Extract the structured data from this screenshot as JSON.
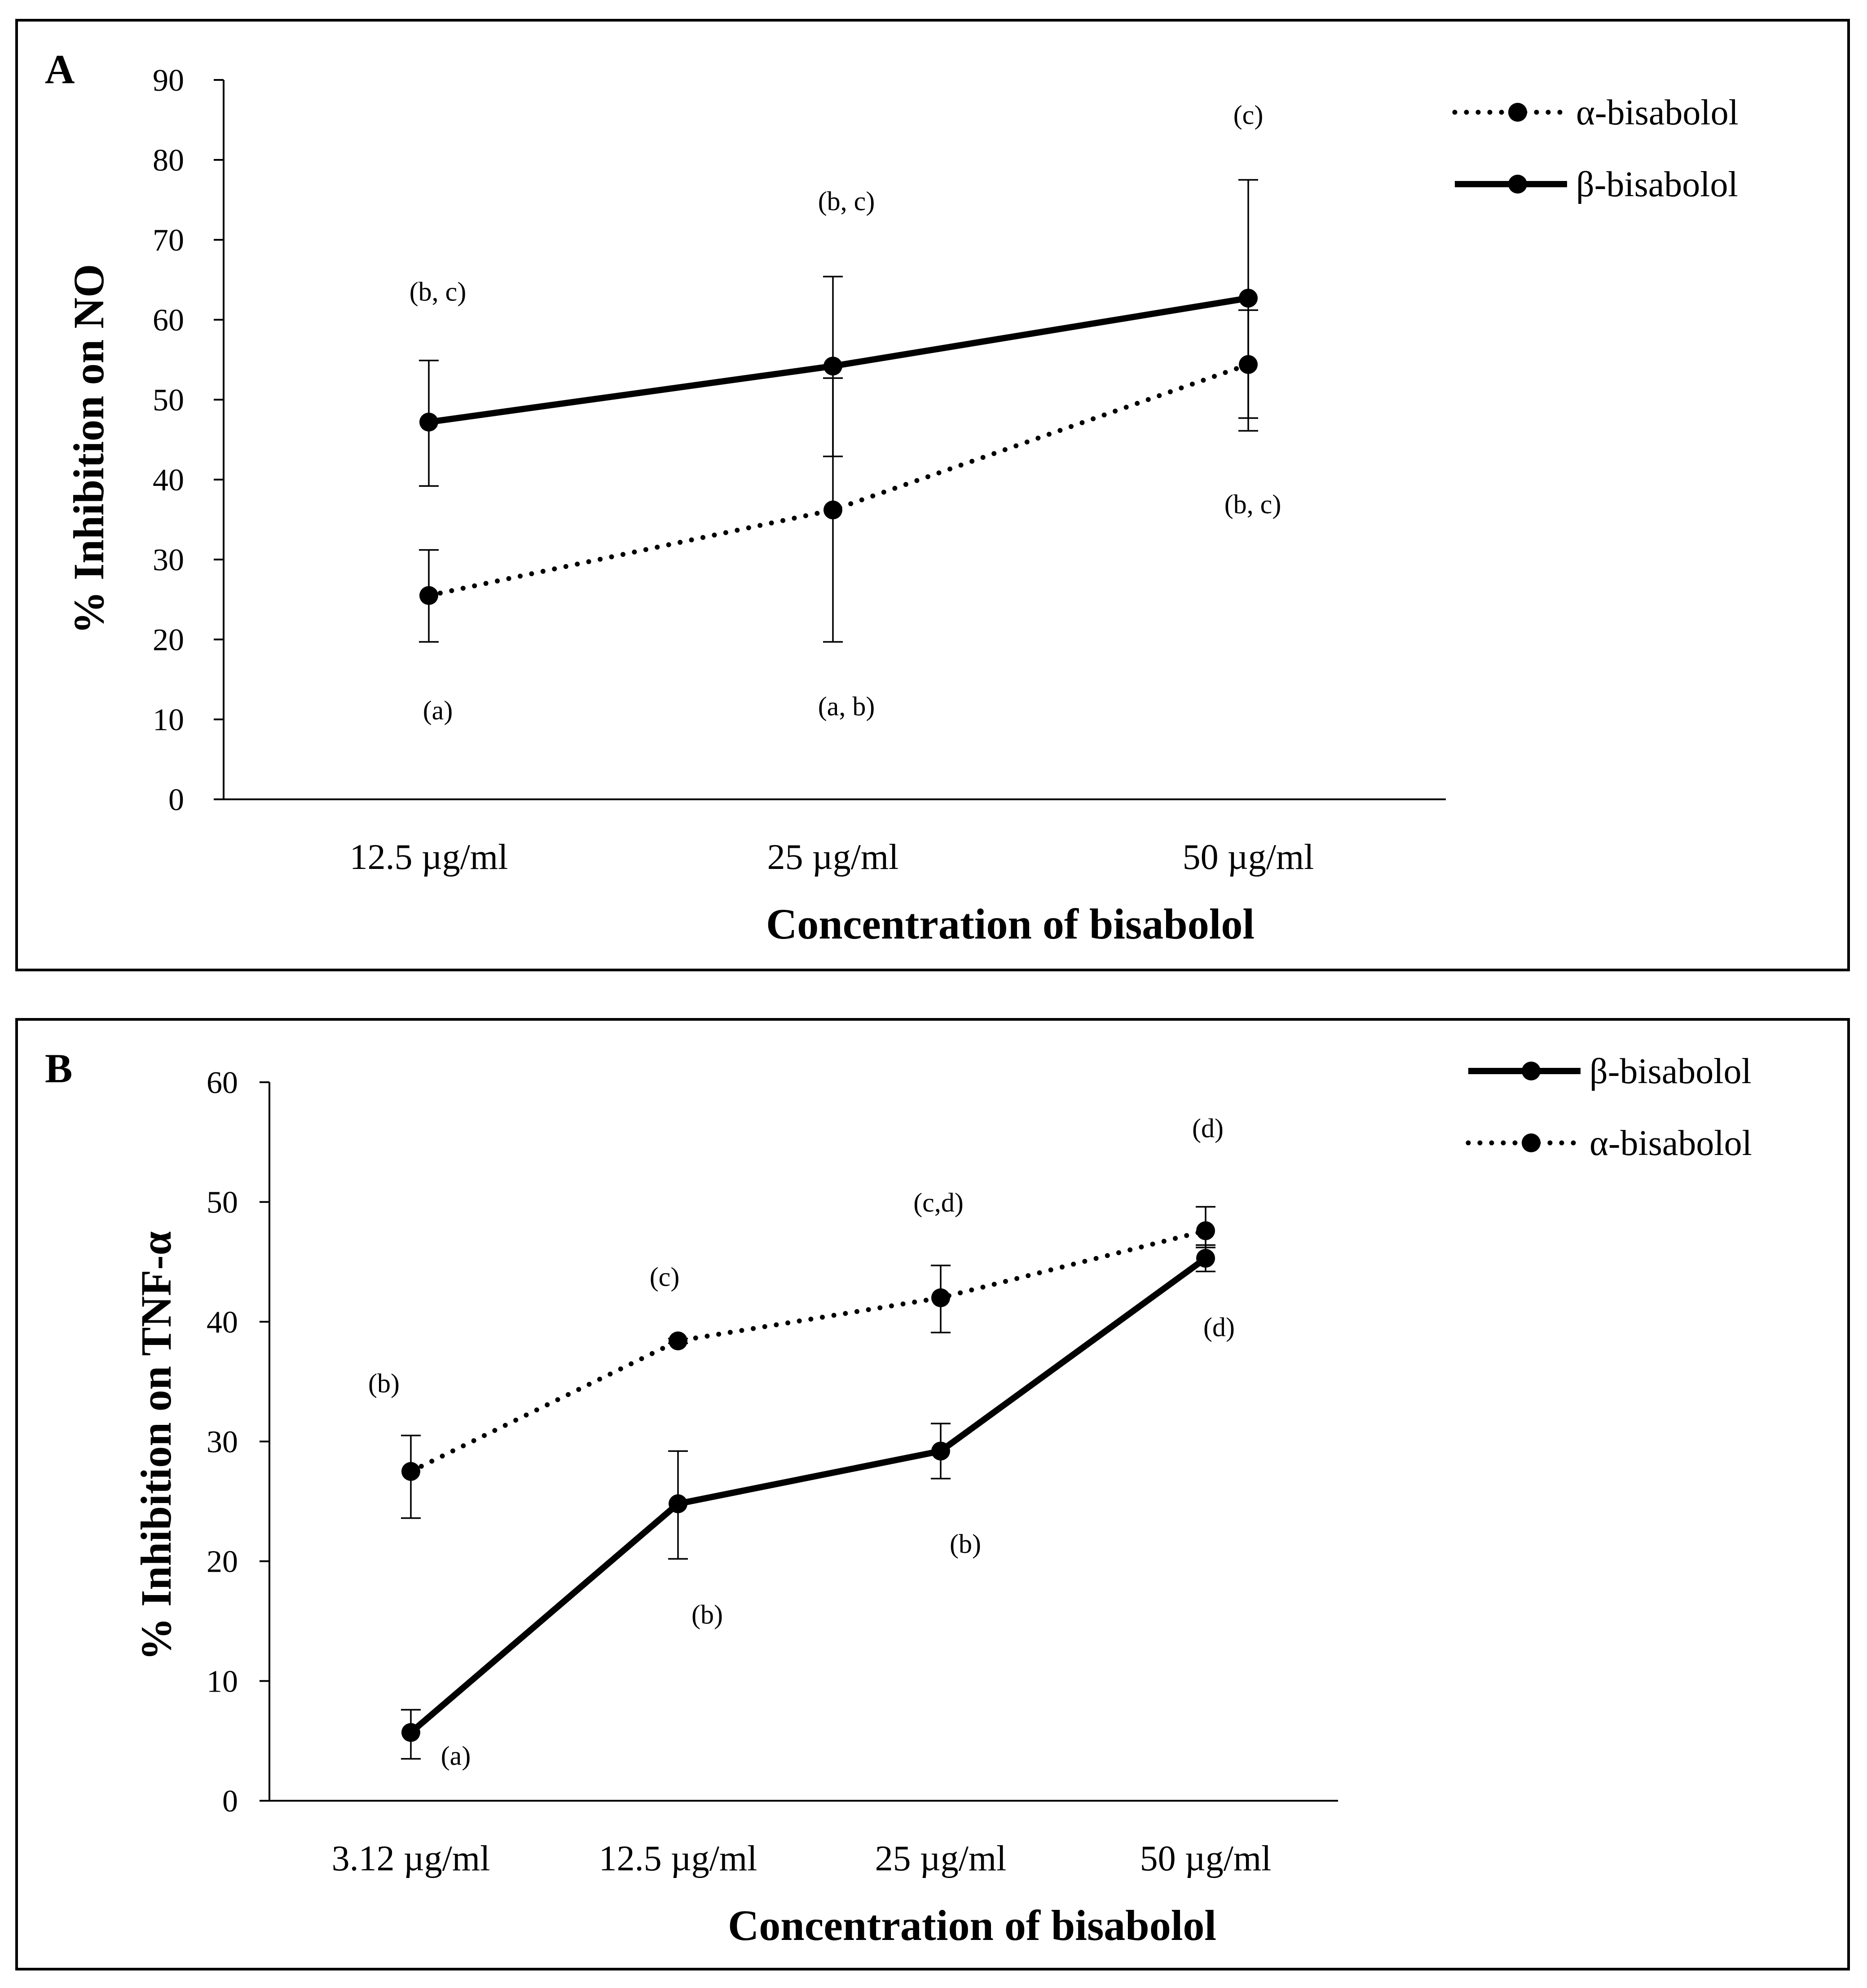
{
  "chart_data": [
    {
      "type": "line",
      "panel_label": "A",
      "title": "",
      "xlabel": "Concentration of bisabolol",
      "ylabel": "% Inhibition on NO",
      "ylim": [
        0,
        90
      ],
      "yticks": [
        0,
        10,
        20,
        30,
        40,
        50,
        60,
        70,
        80,
        90
      ],
      "categories": [
        "12.5 µg/ml",
        "25 µg/ml",
        "50 µg/ml"
      ],
      "legend_position": "top-right",
      "series": [
        {
          "name": "α-bisabolol",
          "style": "dotted",
          "values": [
            25.5,
            36.2,
            54.4
          ],
          "error_low": [
            19.7,
            19.7,
            47.7
          ],
          "error_high": [
            31.2,
            52.7,
            61.2
          ],
          "annotations": [
            {
              "text": "(a)",
              "value": 10
            },
            {
              "text": "(a, b)",
              "value": 10.5
            },
            {
              "text": "(b, c)",
              "value": 35.8
            }
          ]
        },
        {
          "name": "β-bisabolol",
          "style": "solid",
          "values": [
            47.2,
            54.2,
            62.7
          ],
          "error_low": [
            39.2,
            42.9,
            46.1
          ],
          "error_high": [
            54.9,
            65.4,
            77.5
          ],
          "annotations": [
            {
              "text": "(b, c)",
              "value": 62.4
            },
            {
              "text": "(b, c)",
              "value": 73.7
            },
            {
              "text": "(c)",
              "value": 84.5
            }
          ]
        }
      ]
    },
    {
      "type": "line",
      "panel_label": "B",
      "title": "",
      "xlabel": "Concentration of bisabolol",
      "ylabel": "% Inhibition on TNF-α",
      "ylim": [
        0,
        60
      ],
      "yticks": [
        0,
        10,
        20,
        30,
        40,
        50,
        60
      ],
      "categories": [
        "3.12 µg/ml",
        "12.5 µg/ml",
        "25 µg/ml",
        "50 µg/ml"
      ],
      "legend_position": "top-right",
      "series": [
        {
          "name": "β-bisabolol",
          "style": "solid",
          "values": [
            5.7,
            24.8,
            29.2,
            45.3
          ],
          "error_low": [
            3.5,
            20.2,
            26.9,
            44.2
          ],
          "error_high": [
            7.6,
            29.2,
            31.5,
            46.4
          ],
          "annotations": [
            {
              "text": "(a)",
              "value": 3.0
            },
            {
              "text": "(b)",
              "value": 14.8
            },
            {
              "text": "(b)",
              "value": 20.7
            },
            {
              "text": "(d)",
              "value": 38.8
            }
          ]
        },
        {
          "name": "α-bisabolol",
          "style": "dotted",
          "values": [
            27.5,
            38.4,
            42.0,
            47.6
          ],
          "error_low": [
            23.6,
            38.2,
            39.1,
            46.2
          ],
          "error_high": [
            30.5,
            38.6,
            44.7,
            49.6
          ],
          "annotations": [
            {
              "text": "(b)",
              "value": 34.1
            },
            {
              "text": "(c)",
              "value": 43.0
            },
            {
              "text": "(c,d)",
              "value": 49.2
            },
            {
              "text": "(d)",
              "value": 55.4
            }
          ]
        }
      ]
    }
  ]
}
